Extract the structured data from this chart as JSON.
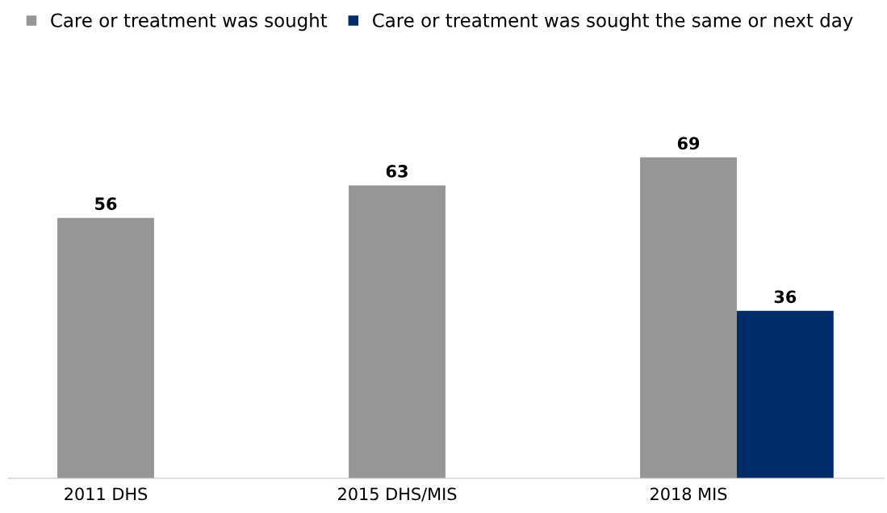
{
  "chart_data": {
    "type": "bar",
    "categories": [
      "2011 DHS",
      "2015 DHS/MIS",
      "2018 MIS"
    ],
    "series": [
      {
        "name": "Care or treatment was sought",
        "color": "#969696",
        "values": [
          56,
          63,
          69
        ]
      },
      {
        "name": "Care or treatment was sought the same or next day",
        "color": "#002d6a",
        "values": [
          null,
          null,
          36
        ]
      }
    ],
    "data_labels": true,
    "legend": "top left",
    "grid": false,
    "tick_labels": "x"
  }
}
